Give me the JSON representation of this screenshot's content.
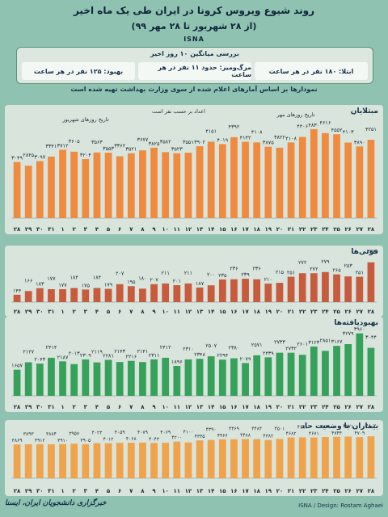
{
  "header": {
    "title": "روند شیوع ویروس کرونا در ایران طی یک ماه اخیر",
    "subtitle": "(از ۲۸ شهریور تا ۲۸ مهر ۹۹)",
    "brand": "ISNA"
  },
  "summary": {
    "heading": "بررسی میانگین ۱۰ روز اخیر",
    "items": [
      "ابتلا: ۱۸۰ نفر در هر ساعت",
      "مرگ‌ومیر: حدود ۱۱ نفر در هر ساعت",
      "بهبود: ۱۲۵ نفر در هر ساعت"
    ]
  },
  "note": "نمودارها بر اساس آمارهای اعلام شده از سوی وزارت بهداشت تهیه شده است",
  "footer": {
    "left": "خبرگزاری دانشجویان ایران، ایسنا",
    "right": "ISNA / Design: Rostam Aghaei"
  },
  "colors": {
    "accent": "#f08a3e",
    "deaths": "#c85a3e",
    "recovered": "#35a15a",
    "critical": "#f0a34a"
  },
  "chart_data": [
    {
      "type": "bar",
      "title": "مبتلایان",
      "annotations": [
        "تاریخ روزهای شهریور",
        "اعداد بر حسب نفر است",
        "تاریخ روزهای مهر"
      ],
      "categories": [
        "۲۸",
        "۲۹",
        "۳۰",
        "۳۱",
        "۱",
        "۲",
        "۳",
        "۴",
        "۵",
        "۶",
        "۷",
        "۸",
        "۹",
        "۱۰",
        "۱۱",
        "۱۲",
        "۱۳",
        "۱۴",
        "۱۵",
        "۱۶",
        "۱۷",
        "۱۸",
        "۱۹",
        "۲۰",
        "۲۱",
        "۲۲",
        "۲۳",
        "۲۴",
        "۲۵",
        "۲۶",
        "۲۷",
        "۲۸"
      ],
      "values": [
        3049,
        2845,
        3097,
        3341,
        3712,
        3605,
        3204,
        3563,
        3553,
        3362,
        3521,
        3677,
        3825,
        3582,
        3523,
        3551,
        3902,
        4151,
        4019,
        4392,
        4142,
        4108,
        3875,
        3822,
        4108,
        4406,
        4830,
        4616,
        4552,
        4103,
        3890,
        4251
      ],
      "labels": [
        "۳۰۴۹",
        "۲۸۴۵",
        "۳۰۹۷",
        "۳۳۴۱",
        "۳۷۱۲",
        "۳۶۰۵",
        "۳۲۰۴",
        "۳۵۶۳",
        "۳۵۵۳",
        "۳۳۶۲",
        "۳۵۲۱",
        "۳۶۷۷",
        "۳۸۲۵",
        "۳۵۸۲",
        "۳۵۲۳",
        "۳۵۵۱",
        "۳۹۰۲",
        "۴۱۵۱",
        "۴۰۱۹",
        "۴۳۹۲",
        "۴۱۴۲",
        "۴۱۰۸",
        "۳۸۷۵",
        "۳۸۲۲",
        "۴۱۰۸",
        "۴۴۰۶",
        "۴۸۳۰",
        "۴۶۱۶",
        "۴۵۵۲",
        "۴۱۰۳",
        "۳۸۹۰",
        "۴۲۵۱"
      ]
    },
    {
      "type": "bar",
      "title": "فوتی‌ها",
      "categories": [
        "۲۸",
        "۲۹",
        "۳۰",
        "۳۱",
        "۱",
        "۲",
        "۳",
        "۴",
        "۵",
        "۶",
        "۷",
        "۸",
        "۹",
        "۱۰",
        "۱۱",
        "۱۲",
        "۱۳",
        "۱۴",
        "۱۵",
        "۱۶",
        "۱۷",
        "۱۸",
        "۱۹",
        "۲۰",
        "۲۱",
        "۲۲",
        "۲۳",
        "۲۴",
        "۲۵",
        "۲۶",
        "۲۷",
        "۲۸"
      ],
      "values": [
        144,
        166,
        183,
        177,
        177,
        184,
        175,
        184,
        179,
        207,
        195,
        180,
        207,
        211,
        201,
        211,
        187,
        200,
        235,
        236,
        239,
        236,
        210,
        215,
        251,
        272,
        272,
        279,
        265,
        253,
        251,
        337
      ],
      "labels": [
        "۱۴۴",
        "۱۶۶",
        "۱۸۳",
        "۱۷۷",
        "۱۷۷",
        "۱۸۴",
        "۱۷۵",
        "۱۸۴",
        "۱۷۹",
        "۲۰۷",
        "۱۹۵",
        "۱۸۰",
        "۲۰۷",
        "۲۱۱",
        "۲۰۱",
        "۲۱۱",
        "۱۸۷",
        "۲۰۰",
        "۲۳۵",
        "۲۳۶",
        "۲۳۹",
        "۲۳۶",
        "۲۱۰",
        "۲۱۵",
        "۲۵۱",
        "۲۷۲",
        "۲۷۲",
        "۲۷۹",
        "۲۶۵",
        "۲۵۳",
        "۲۵۱",
        "۳۳۷"
      ]
    },
    {
      "type": "bar",
      "title": "بهبودیافته‌ها",
      "categories": [
        "۲۸",
        "۲۹",
        "۳۰",
        "۳۱",
        "۱",
        "۲",
        "۳",
        "۴",
        "۵",
        "۶",
        "۷",
        "۸",
        "۹",
        "۱۰",
        "۱۱",
        "۱۲",
        "۱۳",
        "۱۴",
        "۱۵",
        "۱۶",
        "۱۷",
        "۱۸",
        "۱۹",
        "۲۰",
        "۲۱",
        "۲۲",
        "۲۳",
        "۲۴",
        "۲۵",
        "۲۶",
        "۲۷",
        "۲۸"
      ],
      "values": [
        1657,
        2127,
        2043,
        2414,
        2187,
        2013,
        2309,
        2119,
        2281,
        2143,
        2216,
        2141,
        2311,
        2412,
        1896,
        2310,
        2348,
        2507,
        2294,
        2380,
        2079,
        2571,
        2439,
        2733,
        2732,
        2601,
        3123,
        2851,
        3167,
        3279,
        3960,
        3044
      ],
      "labels": [
        "۱۶۵۷",
        "۲۱۲۷",
        "۲۰۴۳",
        "۲۴۱۴",
        "۲۱۸۷",
        "۲۰۱۳",
        "۲۳۰۹",
        "۲۱۱۹",
        "۲۲۸۱",
        "۲۱۴۳",
        "۲۲۱۶",
        "۲۱۴۱",
        "۲۳۱۱",
        "۲۴۱۲",
        "۱۸۹۶",
        "۲۳۱۰",
        "۲۳۴۸",
        "۲۵۰۷",
        "۲۲۹۴",
        "۲۳۸۰",
        "۲۰۷۹",
        "۲۵۷۱",
        "۲۴۳۹",
        "۲۷۳۳",
        "۲۷۳۲",
        "۲۶۰۱",
        "۳۱۲۳",
        "۲۸۵۱",
        "۳۱۶۷",
        "۳۲۷۹",
        "۳۹۶۰",
        "۳۰۴۴"
      ]
    },
    {
      "type": "bar",
      "title": "بیماران با وضعیت حاد",
      "categories": [
        "۲۸",
        "۲۹",
        "۳۰",
        "۳۱",
        "۱",
        "۲",
        "۳",
        "۴",
        "۵",
        "۶",
        "۷",
        "۸",
        "۹",
        "۱۰",
        "۱۱",
        "۱۲",
        "۱۳",
        "۱۴",
        "۱۵",
        "۱۶",
        "۱۷",
        "۱۸",
        "۱۹",
        "۲۰",
        "۲۱",
        "۲۲",
        "۲۳",
        "۲۴",
        "۲۵",
        "۲۶",
        "۲۷",
        "۲۸"
      ],
      "values": [
        3869,
        3893,
        3912,
        3884,
        3910,
        3957,
        3905,
        4023,
        4012,
        4059,
        4068,
        4079,
        4043,
        4069,
        4200,
        4100,
        4335,
        4390,
        4466,
        4469,
        4488,
        4484,
        4382,
        4501,
        4682,
        4691,
        4671,
        4721,
        4744,
        4771,
        4709,
        4802
      ],
      "labels": [
        "۳۸۶۹",
        "۳۸۹۳",
        "۳۹۱۲",
        "۳۸۸۴",
        "۳۹۱۰",
        "۳۹۵۷",
        "۳۹۰۵",
        "۴۰۲۳",
        "۴۰۱۲",
        "۴۰۵۹",
        "۴۰۶۸",
        "۴۰۷۹",
        "۴۰۴۳",
        "۴۰۶۹",
        "۴۲۰۰",
        "۴۱۰۰",
        "۴۳۳۵",
        "۴۳۹۰",
        "۴۴۶۶",
        "۴۴۶۹",
        "۴۴۸۸",
        "۴۴۸۴",
        "۴۳۸۲",
        "۴۵۰۱",
        "۴۶۸۲",
        "۴۶۹۱",
        "۴۶۷۱",
        "۴۷۲۱",
        "۴۷۴۴",
        "۴۷۷۱",
        "۴۷۰۹",
        "۴۸۰۲"
      ]
    }
  ]
}
